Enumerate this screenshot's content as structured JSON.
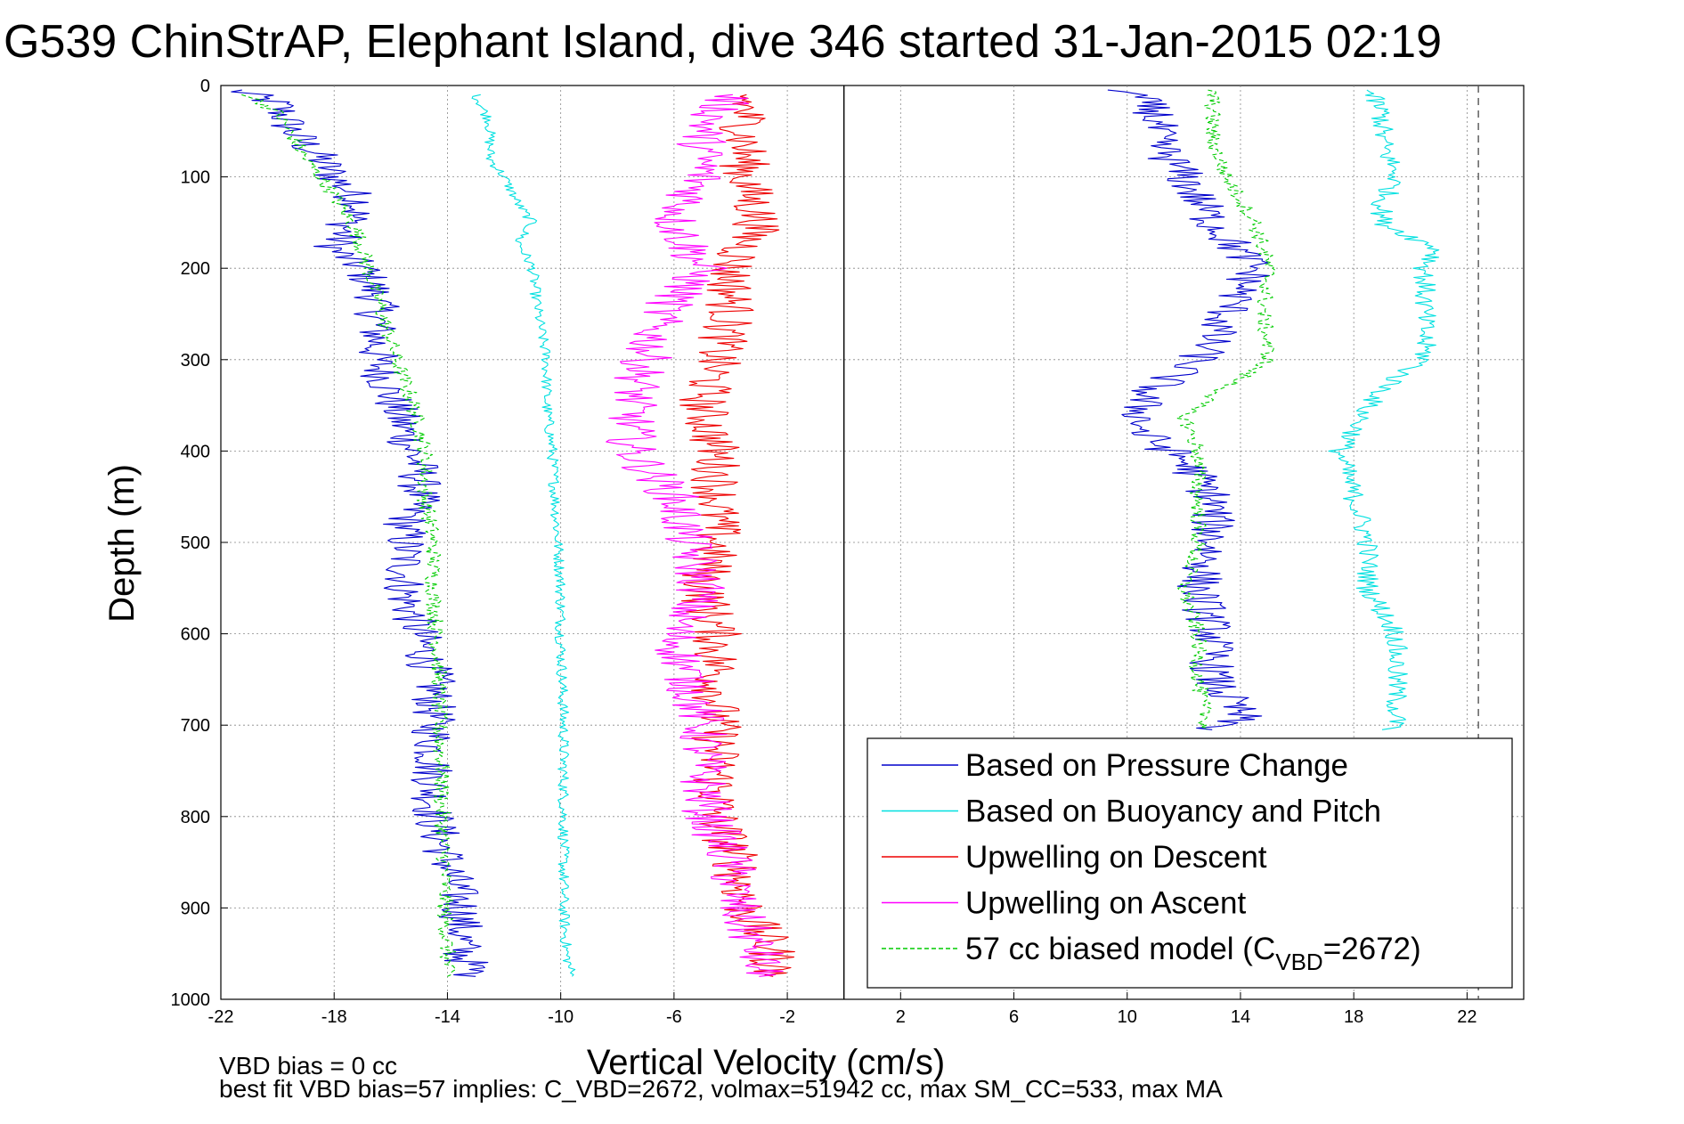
{
  "chart_data": {
    "type": "line",
    "title": "G539 ChinStrAP, Elephant Island, dive 346 started 31-Jan-2015 02:19",
    "xlabel": "Vertical Velocity (cm/s)",
    "ylabel": "Depth (m)",
    "xlim": [
      -22,
      24
    ],
    "ylim": [
      1000,
      0
    ],
    "y_reversed": true,
    "grid": true,
    "legend_placement": "bottom-right",
    "x_ticks": [
      "-22",
      "-18",
      "-14",
      "-10",
      "-6",
      "-2",
      "2",
      "6",
      "10",
      "14",
      "18",
      "22"
    ],
    "y_ticks": [
      "0",
      "100",
      "200",
      "300",
      "400",
      "500",
      "600",
      "700",
      "800",
      "900",
      "1000"
    ],
    "reference_lines": [
      {
        "x": 0,
        "style": "solid",
        "color": "#000000"
      },
      {
        "x": 22.4,
        "style": "dashed",
        "color": "#555555"
      }
    ],
    "legend": {
      "entries": [
        {
          "text": "Based on Pressure Change",
          "color": "#0000cc",
          "dash": false
        },
        {
          "text": "Based on Buoyancy and Pitch",
          "color": "#00e0e0",
          "dash": false
        },
        {
          "text": "Upwelling on Descent",
          "color": "#ee0000",
          "dash": false
        },
        {
          "text": "Upwelling on Ascent",
          "color": "#ff00ff",
          "dash": false
        },
        {
          "text": "57 cc biased model (C",
          "sub": "VBD",
          "text2": "=2672)",
          "color": "#00cc00",
          "dash": true
        }
      ]
    },
    "series": [
      {
        "key": "pressure_descent",
        "color": "#0000cc",
        "jitter": 0.8,
        "points": [
          [
            -21.5,
            5
          ],
          [
            -20,
            20
          ],
          [
            -19.5,
            50
          ],
          [
            -18.5,
            80
          ],
          [
            -18,
            100
          ],
          [
            -17,
            130
          ],
          [
            -17.5,
            150
          ],
          [
            -18,
            180
          ],
          [
            -17,
            200
          ],
          [
            -16.5,
            230
          ],
          [
            -16.5,
            260
          ],
          [
            -16.5,
            300
          ],
          [
            -16,
            340
          ],
          [
            -15.5,
            380
          ],
          [
            -15,
            420
          ],
          [
            -15,
            450
          ],
          [
            -15.5,
            480
          ],
          [
            -15.5,
            520
          ],
          [
            -15.5,
            560
          ],
          [
            -15,
            600
          ],
          [
            -14.5,
            650
          ],
          [
            -14.5,
            700
          ],
          [
            -14.5,
            750
          ],
          [
            -14.5,
            800
          ],
          [
            -14,
            850
          ],
          [
            -13.5,
            900
          ],
          [
            -13.5,
            950
          ],
          [
            -13,
            975
          ]
        ]
      },
      {
        "key": "buoyancy_descent",
        "color": "#00e0e0",
        "jitter": 0.2,
        "points": [
          [
            -13,
            10
          ],
          [
            -12.5,
            40
          ],
          [
            -12.5,
            80
          ],
          [
            -12,
            100
          ],
          [
            -11.5,
            130
          ],
          [
            -11,
            150
          ],
          [
            -11.5,
            170
          ],
          [
            -11,
            200
          ],
          [
            -10.8,
            250
          ],
          [
            -10.5,
            300
          ],
          [
            -10.5,
            350
          ],
          [
            -10.3,
            400
          ],
          [
            -10.2,
            450
          ],
          [
            -10.1,
            500
          ],
          [
            -10,
            550
          ],
          [
            -10,
            600
          ],
          [
            -9.9,
            700
          ],
          [
            -9.9,
            800
          ],
          [
            -9.9,
            900
          ],
          [
            -9.8,
            950
          ],
          [
            -9.6,
            975
          ]
        ]
      },
      {
        "key": "model_descent",
        "color": "#00cc00",
        "jitter": 0.3,
        "dash": true,
        "points": [
          [
            -21,
            10
          ],
          [
            -20,
            30
          ],
          [
            -19,
            80
          ],
          [
            -18,
            120
          ],
          [
            -17.2,
            160
          ],
          [
            -16.8,
            200
          ],
          [
            -16.3,
            250
          ],
          [
            -15.8,
            300
          ],
          [
            -15.2,
            350
          ],
          [
            -14.8,
            400
          ],
          [
            -14.8,
            450
          ],
          [
            -14.5,
            500
          ],
          [
            -14.5,
            550
          ],
          [
            -14.4,
            600
          ],
          [
            -14.3,
            650
          ],
          [
            -14.3,
            700
          ],
          [
            -14.2,
            750
          ],
          [
            -14.2,
            800
          ],
          [
            -14.1,
            850
          ],
          [
            -14.1,
            900
          ],
          [
            -14,
            950
          ],
          [
            -14,
            975
          ]
        ]
      },
      {
        "key": "upwelling_descent",
        "color": "#ee0000",
        "jitter": 0.9,
        "points": [
          [
            -3.5,
            10
          ],
          [
            -3.5,
            50
          ],
          [
            -3.5,
            100
          ],
          [
            -3,
            150
          ],
          [
            -4,
            200
          ],
          [
            -4,
            250
          ],
          [
            -4.5,
            300
          ],
          [
            -5,
            350
          ],
          [
            -4.5,
            400
          ],
          [
            -4.5,
            450
          ],
          [
            -4.5,
            500
          ],
          [
            -5,
            550
          ],
          [
            -4.5,
            600
          ],
          [
            -4.5,
            650
          ],
          [
            -4.5,
            700
          ],
          [
            -4.5,
            750
          ],
          [
            -4.5,
            800
          ],
          [
            -3.8,
            850
          ],
          [
            -3.5,
            900
          ],
          [
            -2.5,
            950
          ],
          [
            -2.5,
            975
          ]
        ]
      },
      {
        "key": "upwelling_ascent",
        "color": "#ff00ff",
        "jitter": 0.9,
        "points": [
          [
            -4,
            10
          ],
          [
            -5,
            50
          ],
          [
            -5,
            100
          ],
          [
            -6,
            150
          ],
          [
            -5,
            200
          ],
          [
            -6.5,
            250
          ],
          [
            -7,
            300
          ],
          [
            -7.5,
            350
          ],
          [
            -7.5,
            400
          ],
          [
            -6,
            450
          ],
          [
            -5.5,
            500
          ],
          [
            -5,
            550
          ],
          [
            -6,
            600
          ],
          [
            -5.5,
            650
          ],
          [
            -5,
            700
          ],
          [
            -5,
            750
          ],
          [
            -4.8,
            800
          ],
          [
            -4,
            850
          ],
          [
            -3.8,
            900
          ],
          [
            -3,
            950
          ],
          [
            -3,
            975
          ]
        ]
      },
      {
        "key": "pressure_ascent",
        "color": "#0000cc",
        "jitter": 0.8,
        "points": [
          [
            10,
            5
          ],
          [
            11,
            30
          ],
          [
            11,
            60
          ],
          [
            12,
            100
          ],
          [
            13,
            150
          ],
          [
            14.5,
            200
          ],
          [
            13.5,
            250
          ],
          [
            12.5,
            300
          ],
          [
            10.5,
            340
          ],
          [
            10.5,
            380
          ],
          [
            12,
            410
          ],
          [
            13,
            450
          ],
          [
            13,
            500
          ],
          [
            12.5,
            550
          ],
          [
            13,
            600
          ],
          [
            13,
            650
          ],
          [
            14,
            690
          ],
          [
            13,
            705
          ]
        ]
      },
      {
        "key": "buoyancy_ascent",
        "color": "#00e0e0",
        "jitter": 0.4,
        "points": [
          [
            18.5,
            5
          ],
          [
            19,
            30
          ],
          [
            19,
            60
          ],
          [
            19.5,
            100
          ],
          [
            19,
            130
          ],
          [
            19,
            150
          ],
          [
            21,
            180
          ],
          [
            20.5,
            200
          ],
          [
            20.5,
            250
          ],
          [
            20.5,
            300
          ],
          [
            19.5,
            320
          ],
          [
            18.5,
            350
          ],
          [
            18,
            380
          ],
          [
            17.5,
            400
          ],
          [
            18,
            450
          ],
          [
            18.5,
            500
          ],
          [
            18.5,
            550
          ],
          [
            19.5,
            600
          ],
          [
            19.5,
            650
          ],
          [
            19.5,
            700
          ],
          [
            19,
            705
          ]
        ]
      },
      {
        "key": "model_ascent",
        "color": "#00cc00",
        "jitter": 0.3,
        "dash": true,
        "points": [
          [
            13,
            5
          ],
          [
            13,
            30
          ],
          [
            13,
            60
          ],
          [
            13.5,
            100
          ],
          [
            14.5,
            150
          ],
          [
            15,
            200
          ],
          [
            14.8,
            250
          ],
          [
            15,
            300
          ],
          [
            13.5,
            330
          ],
          [
            12,
            360
          ],
          [
            12.5,
            400
          ],
          [
            12.5,
            450
          ],
          [
            12.5,
            500
          ],
          [
            12,
            550
          ],
          [
            12.5,
            600
          ],
          [
            12.5,
            650
          ],
          [
            12.8,
            700
          ],
          [
            12.8,
            705
          ]
        ]
      }
    ]
  },
  "footnotes": {
    "line1": "VBD bias = 0 cc",
    "line2": "best fit VBD bias=57 implies: C_VBD=2672, volmax=51942 cc, max SM_CC=533, max MA"
  }
}
